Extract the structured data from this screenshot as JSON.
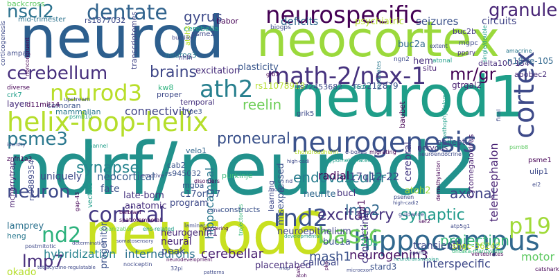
{
  "words": [
    {
      "text": "neurod",
      "color": "#2d5f8e"
    },
    {
      "text": "neocortex",
      "color": "#9bd93c"
    },
    {
      "text": "ndrf/neurod2",
      "color": "#22918c"
    },
    {
      "text": "neurod1",
      "color": "#1f9e89"
    },
    {
      "text": "neurod6",
      "color": "#c8e020"
    },
    {
      "text": "helix-loop-helix",
      "color": "#b5de2b"
    },
    {
      "text": "neurogenesis",
      "color": "#3b528b"
    },
    {
      "text": "math-2/nex-1",
      "color": "#46327e"
    },
    {
      "text": "neurospecific",
      "color": "#440154"
    },
    {
      "text": "dentate",
      "color": "#32648e"
    },
    {
      "text": "neurod3",
      "color": "#b8de29"
    },
    {
      "text": "cortex",
      "color": "#3e4a89"
    },
    {
      "text": "hippocampus",
      "color": "#31688e"
    },
    {
      "text": "basic",
      "color": "#6ece58"
    },
    {
      "text": "ath2",
      "color": "#277f8e"
    },
    {
      "text": "cortical",
      "color": "#443983"
    },
    {
      "text": "rnd2",
      "color": "#3b528b"
    },
    {
      "text": "p19",
      "color": "#a0da39"
    },
    {
      "text": "cerebellum",
      "color": "#472f7d"
    },
    {
      "text": "nscl2",
      "color": "#2c728e"
    },
    {
      "text": "granule",
      "color": "#482576"
    },
    {
      "text": "psme3",
      "color": "#2a788e"
    },
    {
      "text": "neuron",
      "color": "#3e4989"
    },
    {
      "text": "nd2",
      "color": "#2db27d"
    },
    {
      "text": "lmp7",
      "color": "#472d7b"
    },
    {
      "text": "proneural",
      "color": "#3b528b"
    },
    {
      "text": "mr/gr",
      "color": "#440154"
    },
    {
      "text": "brains",
      "color": "#3f4788"
    },
    {
      "text": "synapse",
      "color": "#25848e"
    },
    {
      "text": "excitatory",
      "color": "#46327e"
    },
    {
      "text": "synaptic",
      "color": "#1f9a8a"
    },
    {
      "text": "projection",
      "color": "#35b779"
    },
    {
      "text": "lmp2",
      "color": "#31688e"
    },
    {
      "text": "reelin",
      "color": "#6ece58"
    },
    {
      "text": "axonal",
      "color": "#414487"
    },
    {
      "text": "gyrus",
      "color": "#3e4a89"
    },
    {
      "text": "connectivity",
      "color": "#414487"
    },
    {
      "text": "endovascular",
      "color": "#287c8e"
    },
    {
      "text": "hybridization",
      "color": "#26828e"
    },
    {
      "text": "interneurons",
      "color": "#2c728e"
    },
    {
      "text": "cerebellar",
      "color": "#481f70"
    },
    {
      "text": "mash1",
      "color": "#3b528b"
    },
    {
      "text": "neurogenin3",
      "color": "#471063"
    },
    {
      "text": "interspecific",
      "color": "#3e4989"
    },
    {
      "text": "motor",
      "color": "#5ec962"
    },
    {
      "text": "neocortical",
      "color": "#365c8d"
    },
    {
      "text": "uniquely",
      "color": "#3e4a89"
    },
    {
      "text": "deficits",
      "color": "#31688e"
    },
    {
      "text": "seizures",
      "color": "#3b528b"
    },
    {
      "text": "plasticity",
      "color": "#39568c"
    },
    {
      "text": "excitation",
      "color": "#472d7b"
    },
    {
      "text": "circuits",
      "color": "#414487"
    },
    {
      "text": "psychiatric",
      "color": "#b5de2b"
    },
    {
      "text": "buc2a",
      "color": "#31688e"
    },
    {
      "text": "buc2b",
      "color": "#443983"
    },
    {
      "text": "telencephalon",
      "color": "#482173"
    },
    {
      "text": "hippocampal",
      "color": "#2a788e"
    },
    {
      "text": "misexpressed",
      "color": "#3b528b"
    },
    {
      "text": "radial",
      "color": "#440154"
    },
    {
      "text": "17q12-22",
      "color": "#404688"
    },
    {
      "text": "tbr1",
      "color": "#440154"
    },
    {
      "text": "cerebral",
      "color": "#443983"
    },
    {
      "text": "atoh2",
      "color": "#a0da39"
    },
    {
      "text": "neurite",
      "color": "#31688e"
    },
    {
      "text": "bucl",
      "color": "#46327e"
    },
    {
      "text": "neuroepithelium",
      "color": "#414487"
    },
    {
      "text": "neurogenin1",
      "color": "#482878"
    },
    {
      "text": "neural",
      "color": "#482576"
    },
    {
      "text": "contactin2",
      "color": "#443983"
    },
    {
      "text": "transiently",
      "color": "#3e4989"
    },
    {
      "text": "buc1a",
      "color": "#3b528b"
    },
    {
      "text": "stard3",
      "color": "#3b528b"
    },
    {
      "text": "placentabed",
      "color": "#472d7b"
    },
    {
      "text": "callosal",
      "color": "#3f4788"
    },
    {
      "text": "20s",
      "color": "#2db27d"
    },
    {
      "text": "peak",
      "color": "#3e4a89"
    },
    {
      "text": "fate",
      "color": "#3b528b"
    },
    {
      "text": "late-born",
      "color": "#46327e"
    },
    {
      "text": "anatomic",
      "color": "#472f7d"
    },
    {
      "text": "program",
      "color": "#3e4989"
    },
    {
      "text": "c17orf37",
      "color": "#3b528b"
    },
    {
      "text": "mgba",
      "color": "#39568c"
    },
    {
      "text": "comoran",
      "color": "#3b528b"
    },
    {
      "text": "lamprey",
      "color": "#2c728e"
    },
    {
      "text": "heng",
      "color": "#2a788e"
    },
    {
      "text": "mammalian",
      "color": "#2a788e"
    },
    {
      "text": "layer",
      "color": "#472d7b"
    },
    {
      "text": "d11mit14",
      "color": "#440154"
    },
    {
      "text": "crk7",
      "color": "#1f9e89"
    },
    {
      "text": "ampa",
      "color": "#3e4a89"
    },
    {
      "text": "kw8",
      "color": "#2db27d"
    },
    {
      "text": "proper",
      "color": "#3e4989"
    },
    {
      "text": "temporal",
      "color": "#46327e"
    },
    {
      "text": "velo1",
      "color": "#31688e"
    },
    {
      "text": "cab2",
      "color": "#3b528b"
    },
    {
      "text": "rs945032",
      "color": "#3b528b"
    },
    {
      "text": "purkinje",
      "color": "#35b779"
    },
    {
      "text": "neurog3",
      "color": "#2a788e"
    },
    {
      "text": "babor",
      "color": "#440154"
    },
    {
      "text": "cerebella",
      "color": "#1f9e89"
    },
    {
      "text": "transcriptomes",
      "color": "#414487"
    },
    {
      "text": "rs1877032",
      "color": "#3e4a89"
    },
    {
      "text": "mid-trimester",
      "color": "#2c728e"
    },
    {
      "text": "backcross",
      "color": "#5ec962"
    },
    {
      "text": "rs11078918",
      "color": "#b5de2b"
    },
    {
      "text": "rs72453682",
      "color": "#3e4a89"
    },
    {
      "text": "rs3212879",
      "color": "#3b528b"
    },
    {
      "text": "gtrgal2",
      "color": "#481f70"
    },
    {
      "text": "delta100-134",
      "color": "#472d7b"
    },
    {
      "text": "n18-re-105",
      "color": "#31688e"
    },
    {
      "text": "baubet",
      "color": "#440154"
    },
    {
      "text": "epileptic",
      "color": "#3e4989"
    },
    {
      "text": "nervous",
      "color": "#46327e"
    },
    {
      "text": "shgc-36242",
      "color": "#b5de2b"
    },
    {
      "text": "rs9889354",
      "color": "#3e4989"
    },
    {
      "text": "mcherrytrap",
      "color": "#481f70"
    },
    {
      "text": "hem",
      "color": "#472d7b"
    },
    {
      "text": "situ",
      "color": "#482173"
    },
    {
      "text": "atoh3",
      "color": "#b5de2b"
    },
    {
      "text": "psme2",
      "color": "#3e4989"
    },
    {
      "text": "cytomegalovirus",
      "color": "#481f70"
    },
    {
      "text": "psme1",
      "color": "#440154"
    },
    {
      "text": "ulip1",
      "color": "#3e4a89"
    },
    {
      "text": "apobec2",
      "color": "#472d7b"
    },
    {
      "text": "znfn1a3",
      "color": "#440154"
    },
    {
      "text": "nhlh",
      "color": "#443983"
    },
    {
      "text": "grik5",
      "color": "#3e4a89"
    },
    {
      "text": "ripe3",
      "color": "#3b528b"
    },
    {
      "text": "ngn2",
      "color": "#3e4a89"
    },
    {
      "text": "mgpc",
      "color": "#3e4a89"
    },
    {
      "text": "pparγ",
      "color": "#46327e"
    },
    {
      "text": "amacrine",
      "color": "#2a788e"
    },
    {
      "text": "atonal",
      "color": "#1f9e89"
    },
    {
      "text": "biogps",
      "color": "#3e4a89"
    },
    {
      "text": "buc-like",
      "color": "#414487"
    },
    {
      "text": "corticogenesis",
      "color": "#3e4a89"
    },
    {
      "text": "noncongruent",
      "color": "#440154"
    },
    {
      "text": "diverse",
      "color": "#440154"
    },
    {
      "text": "upstream",
      "color": "#3e4989"
    },
    {
      "text": "grb7",
      "color": "#440154"
    },
    {
      "text": "aspects",
      "color": "#1f9e89"
    },
    {
      "text": "final",
      "color": "#3e4989"
    },
    {
      "text": "single/double",
      "color": "#1f9e89"
    },
    {
      "text": "extent",
      "color": "#3e4989"
    },
    {
      "text": "modulates",
      "color": "#2a788e"
    },
    {
      "text": "identity",
      "color": "#3e4a89"
    },
    {
      "text": "psmb10",
      "color": "#1f9e89"
    },
    {
      "text": "channel",
      "color": "#1f9e89"
    },
    {
      "text": "emotive",
      "color": "#414487"
    },
    {
      "text": "disorders",
      "color": "#440154"
    },
    {
      "text": "gap-43",
      "color": "#440154"
    },
    {
      "text": "balbiani",
      "color": "#440154"
    },
    {
      "text": "spatiotemporal",
      "color": "#440154"
    },
    {
      "text": "vectors",
      "color": "#1f9e89"
    },
    {
      "text": "laminar",
      "color": "#3e4989"
    },
    {
      "text": "cdna",
      "color": "#3e4989"
    },
    {
      "text": "organization",
      "color": "#5ec962"
    },
    {
      "text": "ens-related",
      "color": "#1f9e89"
    },
    {
      "text": "mood",
      "color": "#3e4989"
    },
    {
      "text": "hypomethylated",
      "color": "#1f9e89"
    },
    {
      "text": "chondroadherin",
      "color": "#b5de2b"
    },
    {
      "text": "e-boxes",
      "color": "#3e4989"
    },
    {
      "text": "migrating",
      "color": "#440154"
    },
    {
      "text": "neuroendocrine",
      "color": "#3e4989"
    },
    {
      "text": "high-cadi",
      "color": "#3e4989"
    },
    {
      "text": "psenen",
      "color": "#3e4989"
    },
    {
      "text": "high-cadi2",
      "color": "#3e4989"
    },
    {
      "text": "demethylation",
      "color": "#440154"
    },
    {
      "text": "pathophysiology",
      "color": "#1f9e89"
    },
    {
      "text": "atp5g1",
      "color": "#3e4989"
    },
    {
      "text": "psmb8",
      "color": "#5ec962"
    },
    {
      "text": "el2",
      "color": "#3e4989"
    },
    {
      "text": "guidance",
      "color": "#3e4989"
    },
    {
      "text": "sef2",
      "color": "#440154"
    },
    {
      "text": "vertebrates",
      "color": "#440154"
    },
    {
      "text": "ohtaka-maruyama",
      "color": "#35b779"
    },
    {
      "text": "catshark",
      "color": "#440154"
    },
    {
      "text": "determination",
      "color": "#3e4989"
    },
    {
      "text": "somatosensory",
      "color": "#3e4989"
    },
    {
      "text": "reordering",
      "color": "#440154"
    },
    {
      "text": "trajectories",
      "color": "#35b779"
    },
    {
      "text": "developmental",
      "color": "#1f9e89"
    },
    {
      "text": "postmitotic",
      "color": "#3e4989"
    },
    {
      "text": "tetracycline-regulatable",
      "color": "#3e4989"
    },
    {
      "text": "nociceptin",
      "color": "#3e4989"
    },
    {
      "text": "neurodevelopment",
      "color": "#440154"
    },
    {
      "text": "neurotransmission",
      "color": "#1f9e89"
    },
    {
      "text": "microexon",
      "color": "#3e4989"
    },
    {
      "text": "patterns",
      "color": "#3e4989"
    },
    {
      "text": "32pi",
      "color": "#3e4989"
    },
    {
      "text": "map",
      "color": "#3e4989"
    },
    {
      "text": "akt",
      "color": "#440154"
    },
    {
      "text": "apamin",
      "color": "#3e4989"
    },
    {
      "text": "pkn",
      "color": "#440154"
    },
    {
      "text": "progenitor",
      "color": "#3b528b"
    },
    {
      "text": "learning",
      "color": "#3e4989"
    },
    {
      "text": "nd",
      "color": "#3e4989"
    },
    {
      "text": "okado",
      "color": "#b5de2b"
    },
    {
      "text": "constructs",
      "color": "#3b528b"
    },
    {
      "text": "atoh",
      "color": "#440154"
    }
  ]
}
